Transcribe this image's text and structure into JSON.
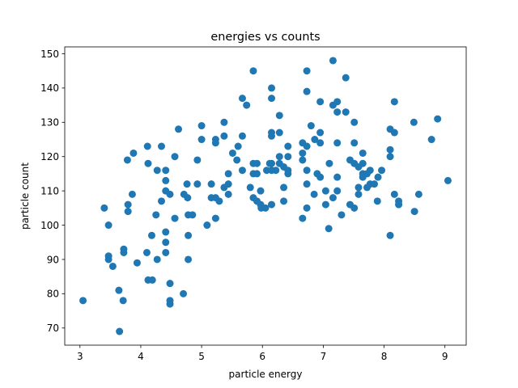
{
  "chart_data": {
    "type": "scatter",
    "title": "energies vs counts",
    "xlabel": "particle energy",
    "ylabel": "particle count",
    "xlim": [
      2.75,
      9.35
    ],
    "ylim": [
      65,
      152
    ],
    "xticks": [
      3,
      4,
      5,
      6,
      7,
      8,
      9
    ],
    "yticks": [
      70,
      80,
      90,
      100,
      110,
      120,
      130,
      140,
      150
    ],
    "grid": false,
    "color": "#1f77b4",
    "points": [
      [
        3.05,
        78
      ],
      [
        3.4,
        105
      ],
      [
        3.47,
        100
      ],
      [
        3.47,
        91
      ],
      [
        3.47,
        90
      ],
      [
        3.54,
        88
      ],
      [
        3.64,
        81
      ],
      [
        3.65,
        69
      ],
      [
        3.71,
        78
      ],
      [
        3.72,
        92
      ],
      [
        3.72,
        93
      ],
      [
        3.78,
        119
      ],
      [
        3.79,
        106
      ],
      [
        3.79,
        104
      ],
      [
        3.86,
        109
      ],
      [
        3.88,
        121
      ],
      [
        3.94,
        89
      ],
      [
        4.1,
        92
      ],
      [
        4.11,
        123
      ],
      [
        4.12,
        118
      ],
      [
        4.12,
        84
      ],
      [
        4.19,
        84
      ],
      [
        4.18,
        97
      ],
      [
        4.25,
        103
      ],
      [
        4.27,
        116
      ],
      [
        4.27,
        90
      ],
      [
        4.34,
        107
      ],
      [
        4.34,
        123
      ],
      [
        4.41,
        116
      ],
      [
        4.41,
        113
      ],
      [
        4.41,
        110
      ],
      [
        4.41,
        98
      ],
      [
        4.41,
        95
      ],
      [
        4.41,
        92
      ],
      [
        4.48,
        109
      ],
      [
        4.48,
        83
      ],
      [
        4.48,
        78
      ],
      [
        4.48,
        77
      ],
      [
        4.56,
        120
      ],
      [
        4.56,
        102
      ],
      [
        4.62,
        128
      ],
      [
        4.71,
        109
      ],
      [
        4.7,
        80
      ],
      [
        4.76,
        112
      ],
      [
        4.77,
        108
      ],
      [
        4.78,
        103
      ],
      [
        4.78,
        97
      ],
      [
        4.78,
        90
      ],
      [
        4.85,
        103
      ],
      [
        4.93,
        119
      ],
      [
        4.93,
        112
      ],
      [
        5.0,
        129
      ],
      [
        5.0,
        125
      ],
      [
        5.09,
        100
      ],
      [
        5.16,
        112
      ],
      [
        5.16,
        108
      ],
      [
        5.23,
        125
      ],
      [
        5.23,
        124
      ],
      [
        5.23,
        108
      ],
      [
        5.23,
        102
      ],
      [
        5.29,
        107
      ],
      [
        5.37,
        130
      ],
      [
        5.37,
        126
      ],
      [
        5.37,
        111
      ],
      [
        5.44,
        115
      ],
      [
        5.44,
        112
      ],
      [
        5.44,
        109
      ],
      [
        5.51,
        121
      ],
      [
        5.58,
        119
      ],
      [
        5.6,
        123
      ],
      [
        5.67,
        137
      ],
      [
        5.67,
        126
      ],
      [
        5.67,
        116
      ],
      [
        5.74,
        135
      ],
      [
        5.8,
        111
      ],
      [
        5.85,
        145
      ],
      [
        5.85,
        118
      ],
      [
        5.85,
        115
      ],
      [
        5.85,
        108
      ],
      [
        5.91,
        118
      ],
      [
        5.91,
        115
      ],
      [
        5.91,
        107
      ],
      [
        5.97,
        110
      ],
      [
        5.97,
        106
      ],
      [
        5.98,
        105
      ],
      [
        6.05,
        105
      ],
      [
        6.07,
        116
      ],
      [
        6.12,
        118
      ],
      [
        6.15,
        140
      ],
      [
        6.15,
        137
      ],
      [
        6.15,
        127
      ],
      [
        6.15,
        126
      ],
      [
        6.15,
        118
      ],
      [
        6.15,
        116
      ],
      [
        6.15,
        106
      ],
      [
        6.22,
        116
      ],
      [
        6.28,
        132
      ],
      [
        6.28,
        127
      ],
      [
        6.28,
        120
      ],
      [
        6.28,
        118
      ],
      [
        6.35,
        117
      ],
      [
        6.35,
        111
      ],
      [
        6.35,
        107
      ],
      [
        6.42,
        123
      ],
      [
        6.42,
        120
      ],
      [
        6.42,
        116
      ],
      [
        6.42,
        115
      ],
      [
        6.66,
        124
      ],
      [
        6.66,
        121
      ],
      [
        6.66,
        119
      ],
      [
        6.66,
        102
      ],
      [
        6.73,
        145
      ],
      [
        6.73,
        139
      ],
      [
        6.73,
        123
      ],
      [
        6.73,
        116
      ],
      [
        6.73,
        112
      ],
      [
        6.73,
        105
      ],
      [
        6.8,
        129
      ],
      [
        6.85,
        109
      ],
      [
        6.86,
        125
      ],
      [
        6.9,
        115
      ],
      [
        6.95,
        136
      ],
      [
        6.95,
        127
      ],
      [
        6.95,
        124
      ],
      [
        6.95,
        114
      ],
      [
        7.04,
        110
      ],
      [
        7.04,
        106
      ],
      [
        7.09,
        99
      ],
      [
        7.1,
        118
      ],
      [
        7.16,
        148
      ],
      [
        7.16,
        135
      ],
      [
        7.16,
        108
      ],
      [
        7.23,
        136
      ],
      [
        7.23,
        133
      ],
      [
        7.23,
        124
      ],
      [
        7.23,
        114
      ],
      [
        7.23,
        110
      ],
      [
        7.3,
        103
      ],
      [
        7.37,
        143
      ],
      [
        7.37,
        133
      ],
      [
        7.44,
        119
      ],
      [
        7.44,
        106
      ],
      [
        7.51,
        130
      ],
      [
        7.51,
        124
      ],
      [
        7.51,
        118
      ],
      [
        7.51,
        105
      ],
      [
        7.58,
        117
      ],
      [
        7.58,
        111
      ],
      [
        7.58,
        109
      ],
      [
        7.65,
        121
      ],
      [
        7.65,
        118
      ],
      [
        7.65,
        115
      ],
      [
        7.65,
        114
      ],
      [
        7.72,
        115
      ],
      [
        7.72,
        111
      ],
      [
        7.77,
        116
      ],
      [
        7.77,
        112
      ],
      [
        7.84,
        112
      ],
      [
        7.89,
        107
      ],
      [
        7.9,
        114
      ],
      [
        7.96,
        116
      ],
      [
        8.1,
        128
      ],
      [
        8.1,
        122
      ],
      [
        8.1,
        120
      ],
      [
        8.1,
        97
      ],
      [
        8.17,
        136
      ],
      [
        8.17,
        127
      ],
      [
        8.17,
        109
      ],
      [
        8.24,
        107
      ],
      [
        8.24,
        106
      ],
      [
        8.49,
        130
      ],
      [
        8.5,
        104
      ],
      [
        8.57,
        109
      ],
      [
        8.78,
        125
      ],
      [
        8.88,
        131
      ],
      [
        9.05,
        113
      ]
    ]
  }
}
